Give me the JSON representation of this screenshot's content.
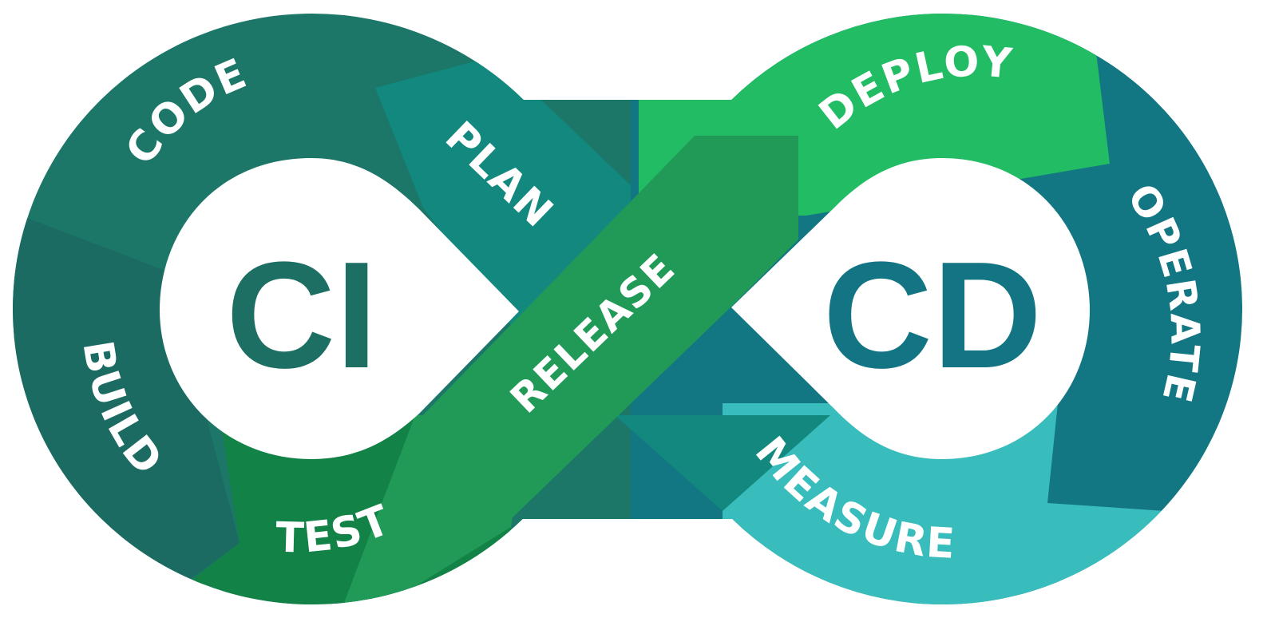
{
  "ci": {
    "label": "CI",
    "color": "#1d6e63"
  },
  "cd": {
    "label": "CD",
    "color": "#137583"
  },
  "stages": {
    "code": {
      "label": "CODE",
      "color": "#1c7769"
    },
    "plan": {
      "label": "PLAN",
      "color": "#12887e"
    },
    "build": {
      "label": "BUILD",
      "color": "#1b6b63"
    },
    "test": {
      "label": "TEST",
      "color": "#128246"
    },
    "release": {
      "label": "RELEASE",
      "color": "#219a58"
    },
    "deploy": {
      "label": "DEPLOY",
      "color": "#22bc64"
    },
    "operate": {
      "label": "OPERATE",
      "color": "#137683"
    },
    "measure": {
      "label": "MEASURE",
      "color": "#38bcbc"
    }
  }
}
